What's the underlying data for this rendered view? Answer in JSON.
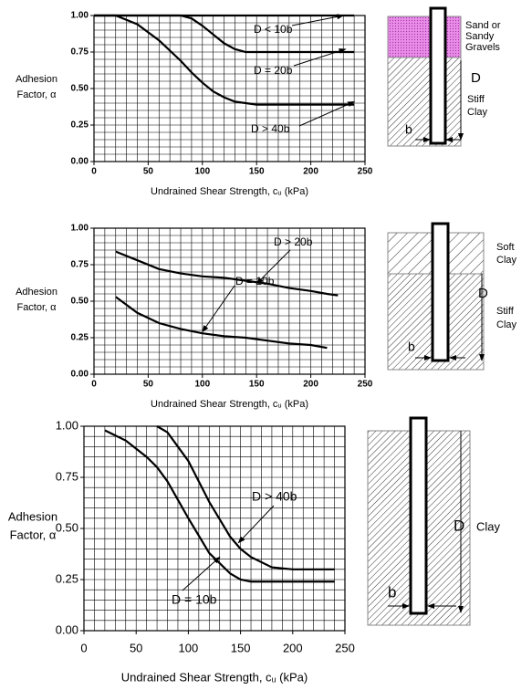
{
  "chart_data": [
    {
      "type": "line",
      "ylabel": [
        "Adhesion",
        "Factor, α"
      ],
      "xlabel": "Undrained Shear Strength, cᵤ (kPa)",
      "x": [
        0,
        20,
        40,
        60,
        80,
        90,
        100,
        110,
        120,
        130,
        140,
        150,
        200,
        240
      ],
      "series": [
        {
          "name": "D < 10b",
          "color": "#000000",
          "values": [
            1,
            1,
            1,
            1,
            1,
            1,
            1,
            1,
            1,
            1,
            1,
            1,
            1,
            1
          ]
        },
        {
          "name": "D = 20b",
          "color": "#000000",
          "values": [
            1,
            1,
            1,
            1,
            1,
            0.98,
            0.93,
            0.87,
            0.81,
            0.77,
            0.75,
            0.75,
            0.75,
            0.75
          ]
        },
        {
          "name": "D > 40b",
          "color": "#000000",
          "values": [
            1,
            1,
            0.94,
            0.83,
            0.69,
            0.61,
            0.54,
            0.48,
            0.44,
            0.41,
            0.4,
            0.39,
            0.39,
            0.39
          ]
        }
      ],
      "xlim": [
        0,
        250
      ],
      "ylim": [
        0,
        1
      ],
      "xticks": [
        0,
        50,
        100,
        150,
        200,
        250
      ],
      "yticks": [
        {
          "value": 0,
          "label": "0.00"
        },
        {
          "value": 0.25,
          "label": "0.25"
        },
        {
          "value": 0.5,
          "label": "0.50"
        },
        {
          "value": 0.75,
          "label": "0.75"
        },
        {
          "value": 1,
          "label": "1.00"
        }
      ],
      "grid": true,
      "xgrid": [
        0,
        10,
        20,
        30,
        40,
        50,
        60,
        70,
        80,
        90,
        100,
        110,
        120,
        130,
        140,
        150,
        160,
        170,
        180,
        190,
        200,
        210,
        220,
        230,
        240,
        250
      ],
      "ygrid": [
        0,
        0.05,
        0.1,
        0.15,
        0.2,
        0.25,
        0.3,
        0.35,
        0.4,
        0.45,
        0.5,
        0.55,
        0.6,
        0.65,
        0.7,
        0.75,
        0.8,
        0.85,
        0.9,
        0.95,
        1
      ]
    },
    {
      "type": "line",
      "ylabel": [
        "Adhesion",
        "Factor, α"
      ],
      "xlabel": "Undrained Shear Strength, cᵤ (kPa)",
      "x": [
        20,
        40,
        60,
        80,
        100,
        120,
        140,
        160,
        180,
        200,
        215,
        225
      ],
      "series": [
        {
          "name": "D > 20b",
          "color": "#000000",
          "values": [
            0.84,
            0.78,
            0.72,
            0.69,
            0.67,
            0.66,
            0.64,
            0.62,
            0.59,
            0.57,
            0.55,
            0.54
          ]
        },
        {
          "name": "D = 10b",
          "color": "#000000",
          "values": [
            0.53,
            0.42,
            0.35,
            0.31,
            0.28,
            0.26,
            0.25,
            0.23,
            0.21,
            0.2,
            0.18,
            null
          ]
        }
      ],
      "xlim": [
        0,
        250
      ],
      "ylim": [
        0,
        1
      ],
      "xticks": [
        0,
        50,
        100,
        150,
        200,
        250
      ],
      "yticks": [
        {
          "value": 0,
          "label": "0.00"
        },
        {
          "value": 0.25,
          "label": "0.25"
        },
        {
          "value": 0.5,
          "label": "0.50"
        },
        {
          "value": 0.75,
          "label": "0.75"
        },
        {
          "value": 1,
          "label": "1.00"
        }
      ],
      "grid": true,
      "xgrid": [
        0,
        10,
        20,
        30,
        40,
        50,
        60,
        70,
        80,
        90,
        100,
        110,
        120,
        130,
        140,
        150,
        160,
        170,
        180,
        190,
        200,
        210,
        220,
        230,
        240,
        250
      ],
      "ygrid": [
        0,
        0.05,
        0.1,
        0.15,
        0.2,
        0.25,
        0.3,
        0.35,
        0.4,
        0.45,
        0.5,
        0.55,
        0.6,
        0.65,
        0.7,
        0.75,
        0.8,
        0.85,
        0.9,
        0.95,
        1
      ]
    },
    {
      "type": "line",
      "ylabel": [
        "Adhesion",
        "Factor, α"
      ],
      "xlabel": "Undrained Shear Strength, cᵤ (kPa)",
      "x": [
        20,
        40,
        60,
        70,
        80,
        100,
        120,
        140,
        150,
        160,
        180,
        200,
        240
      ],
      "series": [
        {
          "name": "D > 40b",
          "color": "#000000",
          "values": [
            null,
            null,
            null,
            1,
            0.97,
            0.83,
            0.63,
            0.46,
            0.4,
            0.36,
            0.31,
            0.3,
            0.3
          ]
        },
        {
          "name": "D = 10b",
          "color": "#000000",
          "values": [
            0.98,
            0.93,
            0.85,
            0.8,
            0.73,
            0.55,
            0.38,
            0.28,
            0.25,
            0.24,
            0.24,
            0.24,
            0.24
          ]
        }
      ],
      "xlim": [
        0,
        250
      ],
      "ylim": [
        0,
        1
      ],
      "xticks": [
        0,
        50,
        100,
        150,
        200,
        250
      ],
      "yticks": [
        {
          "value": 0,
          "label": "0.00"
        },
        {
          "value": 0.25,
          "label": "0.25"
        },
        {
          "value": 0.5,
          "label": "0.50"
        },
        {
          "value": 0.75,
          "label": "0.75"
        },
        {
          "value": 1,
          "label": "1.00"
        }
      ],
      "grid": true,
      "xgrid": [
        0,
        10,
        20,
        30,
        40,
        50,
        60,
        70,
        80,
        90,
        100,
        110,
        120,
        130,
        140,
        150,
        160,
        170,
        180,
        190,
        200,
        210,
        220,
        230,
        240,
        250
      ],
      "ygrid": [
        0,
        0.05,
        0.1,
        0.15,
        0.2,
        0.25,
        0.3,
        0.35,
        0.4,
        0.45,
        0.5,
        0.55,
        0.6,
        0.65,
        0.7,
        0.75,
        0.8,
        0.85,
        0.9,
        0.95,
        1
      ]
    }
  ],
  "diagrams": [
    {
      "labels": [
        "Sand or",
        "Sandy",
        "Gravels",
        "Stiff",
        "Clay",
        "D",
        "b"
      ]
    },
    {
      "labels": [
        "Soft",
        "Clay",
        "Stiff",
        "Clay",
        "D",
        "b"
      ]
    },
    {
      "labels": [
        "D",
        "Clay",
        "b"
      ]
    }
  ]
}
